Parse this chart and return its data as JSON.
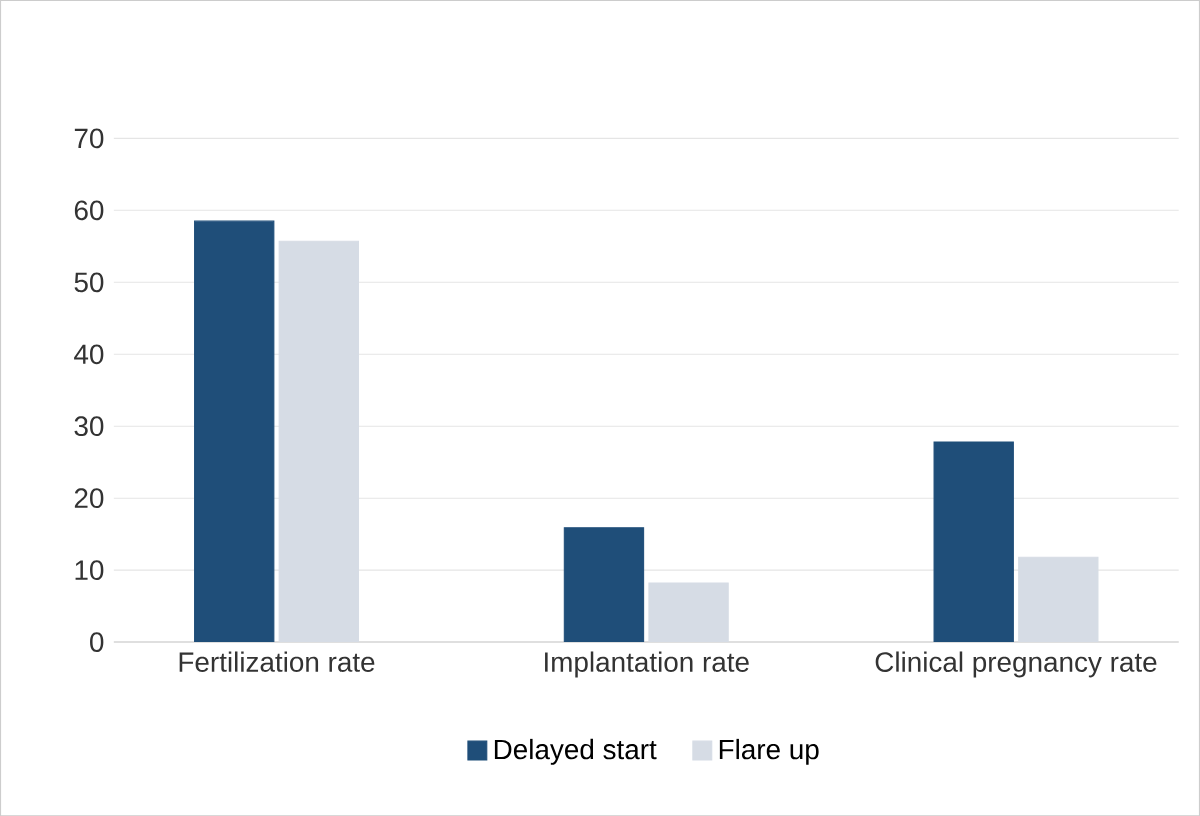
{
  "chart_data": {
    "type": "bar",
    "categories": [
      "Fertilization rate",
      "Implantation rate",
      "Clinical pregnancy rate"
    ],
    "series": [
      {
        "name": "Delayed start",
        "color": "#1f4e79",
        "values": [
          58.5,
          15.9,
          27.8
        ]
      },
      {
        "name": "Flare up",
        "color": "#d6dce5",
        "values": [
          55.7,
          8.2,
          11.8
        ]
      }
    ],
    "ylim": [
      0,
      70
    ],
    "yticks": [
      0,
      10,
      20,
      30,
      40,
      50,
      60,
      70
    ],
    "grid": "y",
    "legend": "bottom"
  }
}
